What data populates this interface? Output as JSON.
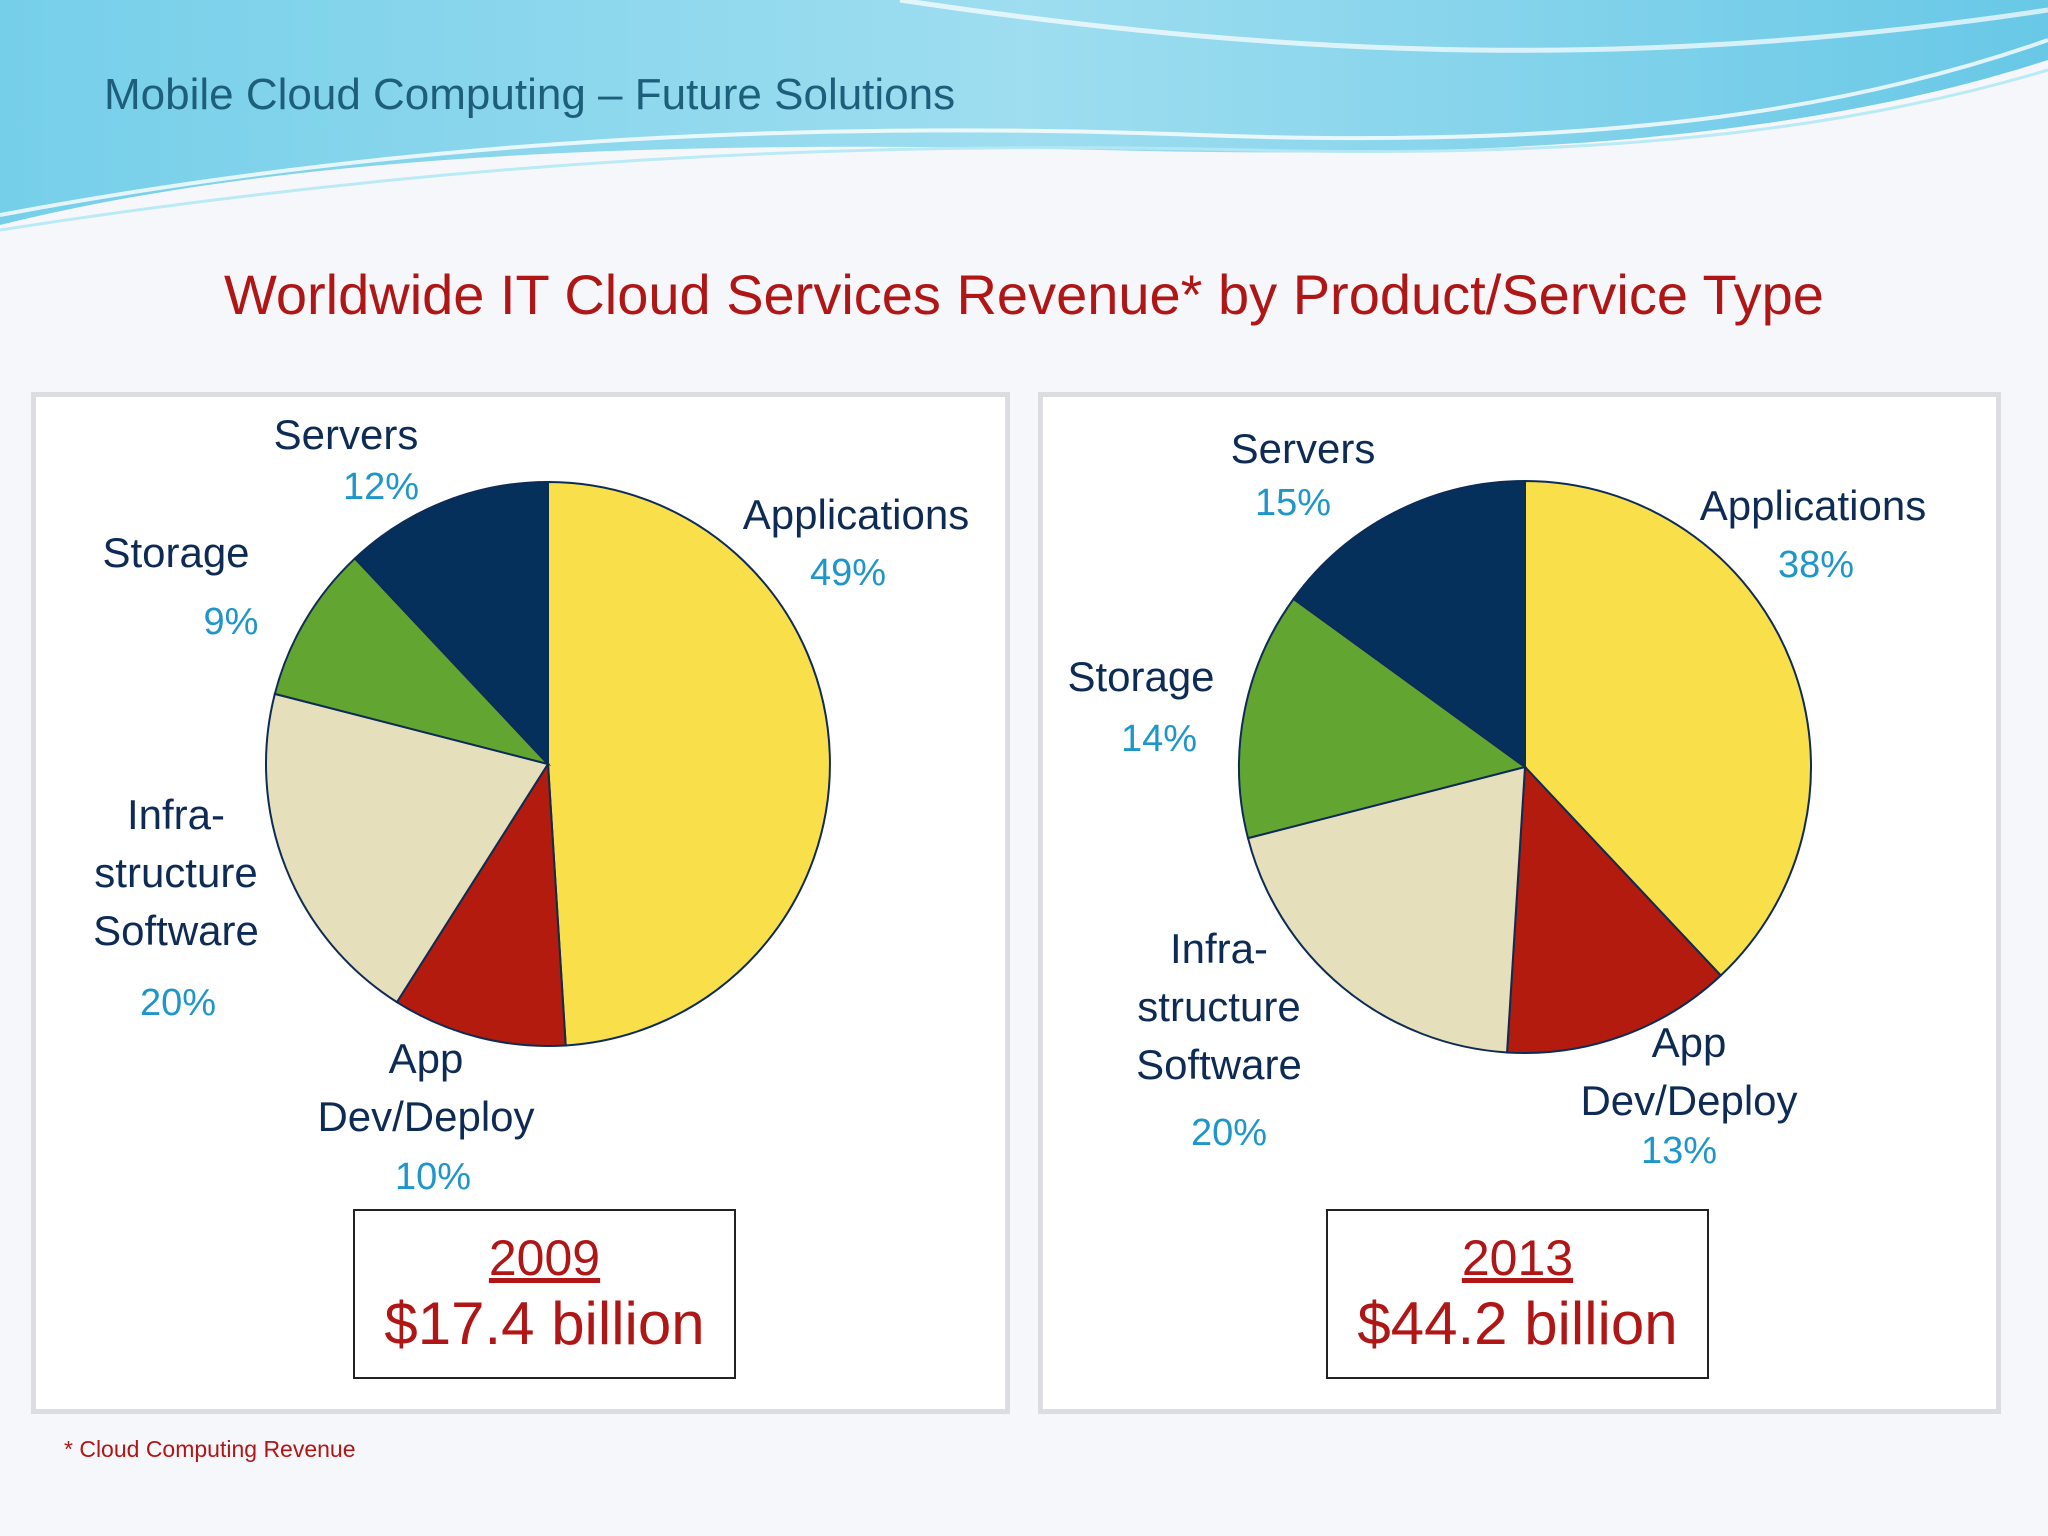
{
  "header": {
    "title": "Mobile Cloud Computing – Future Solutions"
  },
  "main_title": "Worldwide IT Cloud Services Revenue* by Product/Service Type",
  "footnote": "* Cloud Computing Revenue",
  "colors": {
    "applications": "#f9e04b",
    "app_dev_deploy": "#b31b0f",
    "infrastructure_software": "#e5dfbb",
    "storage": "#63a531",
    "servers": "#06305c",
    "label_name": "#0d2b55",
    "label_pct": "#1f96c9",
    "accent_red": "#b01616"
  },
  "chart_data": [
    {
      "type": "pie",
      "year": "2009",
      "total": "$17.4 billion",
      "slices": [
        {
          "key": "applications",
          "name": [
            "Applications"
          ],
          "value": 49,
          "label": "49%"
        },
        {
          "key": "app_dev_deploy",
          "name": [
            "App",
            "Dev/Deploy"
          ],
          "value": 10,
          "label": "10%"
        },
        {
          "key": "infrastructure_software",
          "name": [
            "Infra-",
            "structure",
            "Software"
          ],
          "value": 20,
          "label": "20%"
        },
        {
          "key": "storage",
          "name": [
            "Storage"
          ],
          "value": 9,
          "label": "9%"
        },
        {
          "key": "servers",
          "name": [
            "Servers"
          ],
          "value": 12,
          "label": "12%"
        }
      ]
    },
    {
      "type": "pie",
      "year": "2013",
      "total": "$44.2 billion",
      "slices": [
        {
          "key": "applications",
          "name": [
            "Applications"
          ],
          "value": 38,
          "label": "38%"
        },
        {
          "key": "app_dev_deploy",
          "name": [
            "App",
            "Dev/Deploy"
          ],
          "value": 13,
          "label": "13%"
        },
        {
          "key": "infrastructure_software",
          "name": [
            "Infra-",
            "structure",
            "Software"
          ],
          "value": 20,
          "label": "20%"
        },
        {
          "key": "storage",
          "name": [
            "Storage"
          ],
          "value": 14,
          "label": "14%"
        },
        {
          "key": "servers",
          "name": [
            "Servers"
          ],
          "value": 15,
          "label": "15%"
        }
      ]
    }
  ]
}
